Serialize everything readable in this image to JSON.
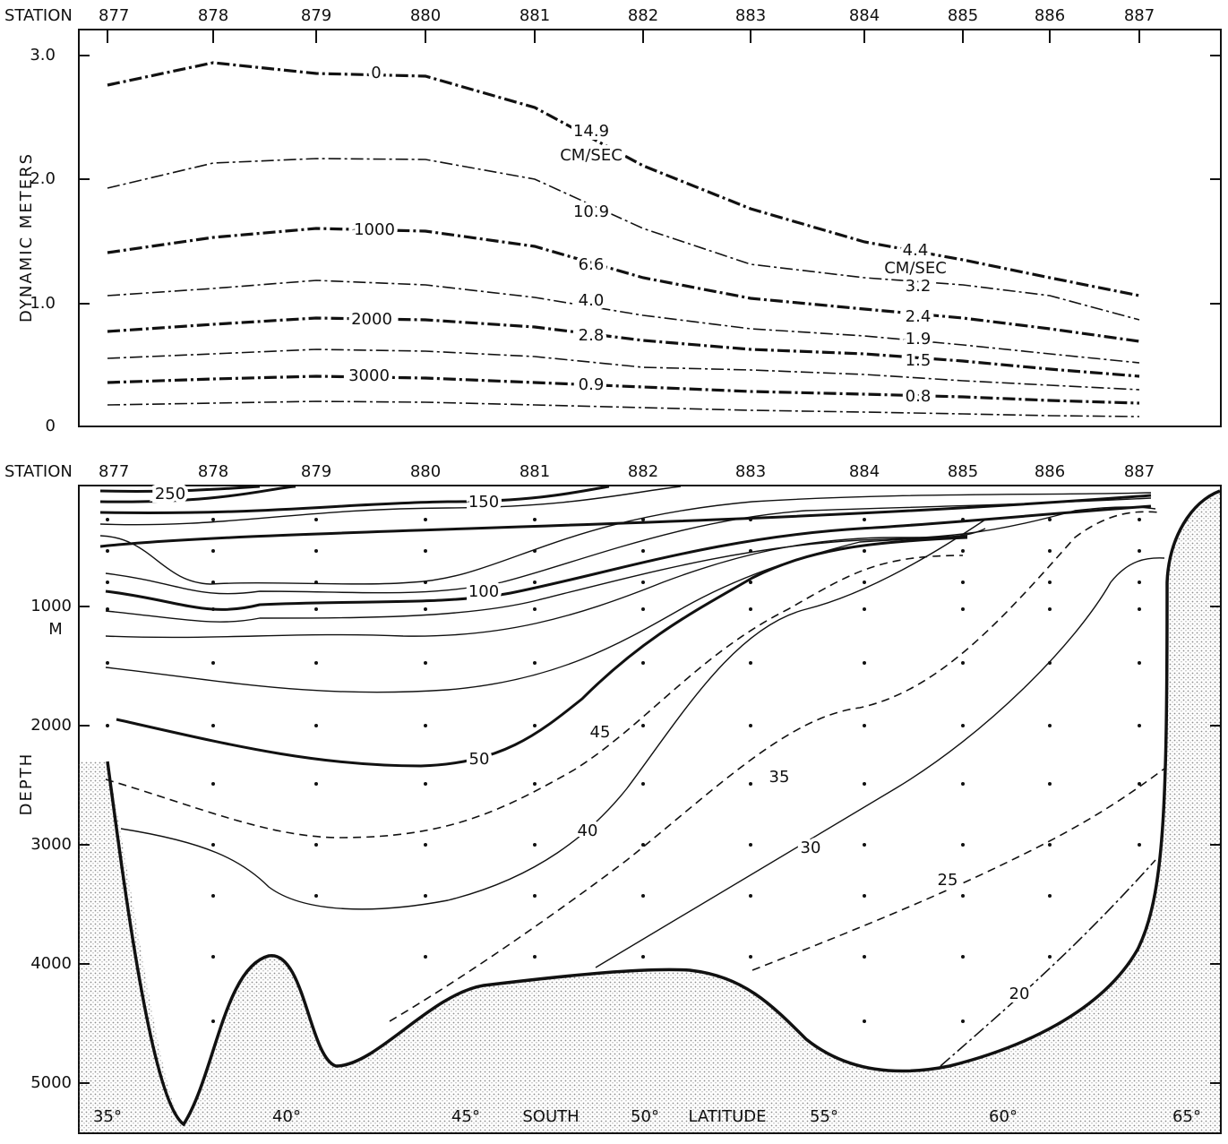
{
  "top_panel": {
    "station_word": "STATION",
    "stations": [
      "877",
      "878",
      "879",
      "880",
      "881",
      "882",
      "883",
      "884",
      "885",
      "886",
      "887"
    ],
    "y_axis_label": "DYNAMIC METERS",
    "y_ticks": [
      "3.0",
      "2.0",
      "1.0",
      "0"
    ],
    "contour_labels": [
      "0",
      "14.9",
      "CM/SEC",
      "10.9",
      "1000",
      "6.6",
      "4.0",
      "2000",
      "2.8",
      "3000",
      "0.9",
      "4.4",
      "CM/SEC",
      "3.2",
      "2.4",
      "1.9",
      "1.5",
      "0.8"
    ]
  },
  "bottom_panel": {
    "station_word": "STATION",
    "stations": [
      "877",
      "878",
      "879",
      "880",
      "881",
      "882",
      "883",
      "884",
      "885",
      "886",
      "887"
    ],
    "y_axis_label": "DEPTH",
    "y_unit": "M",
    "y_ticks": [
      "1000",
      "2000",
      "3000",
      "4000",
      "5000"
    ],
    "latitude_ticks": [
      "35°",
      "40°",
      "45°",
      "50°",
      "55°",
      "60°",
      "65°"
    ],
    "x_axis_words": [
      "SOUTH",
      "LATITUDE"
    ],
    "contour_labels": [
      "250",
      "150",
      "100",
      "50",
      "45",
      "40",
      "35",
      "30",
      "25",
      "20"
    ]
  }
}
